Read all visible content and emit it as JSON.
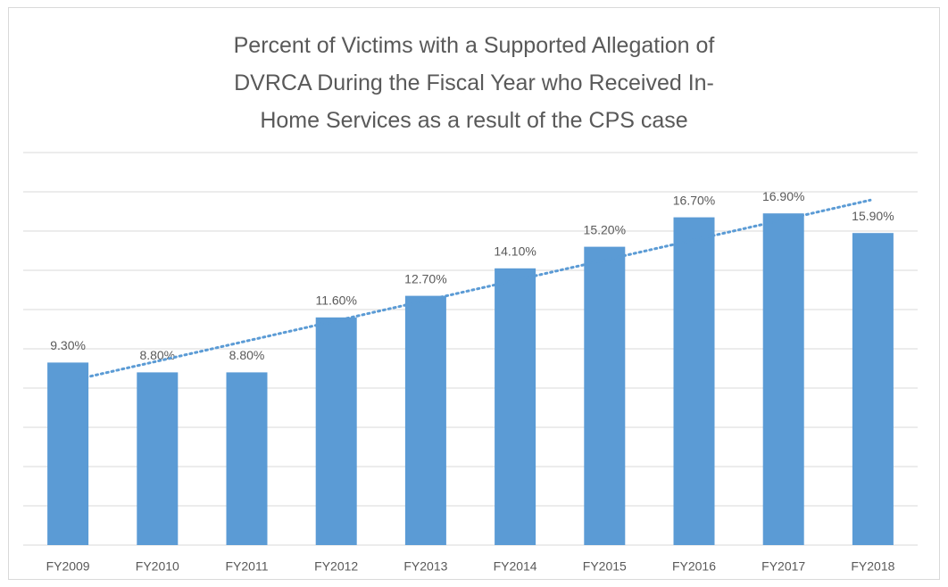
{
  "chart_data": {
    "type": "bar",
    "title": "Percent of Victims with a Supported Allegation of DVRCA During the Fiscal Year who Received In-Home Services as a result of the CPS case",
    "categories": [
      "FY2009",
      "FY2010",
      "FY2011",
      "FY2012",
      "FY2013",
      "FY2014",
      "FY2015",
      "FY2016",
      "FY2017",
      "FY2018"
    ],
    "values": [
      9.3,
      8.8,
      8.8,
      11.6,
      12.7,
      14.1,
      15.2,
      16.7,
      16.9,
      15.9
    ],
    "value_labels": [
      "9.30%",
      "8.80%",
      "8.80%",
      "11.60%",
      "12.70%",
      "14.10%",
      "15.20%",
      "16.70%",
      "16.90%",
      "15.90%"
    ],
    "color": "#5b9bd5",
    "ylim": [
      0,
      20
    ],
    "yticks": [
      0,
      2,
      4,
      6,
      8,
      10,
      12,
      14,
      16,
      18,
      20
    ],
    "grid": true,
    "trendline": "linear"
  }
}
